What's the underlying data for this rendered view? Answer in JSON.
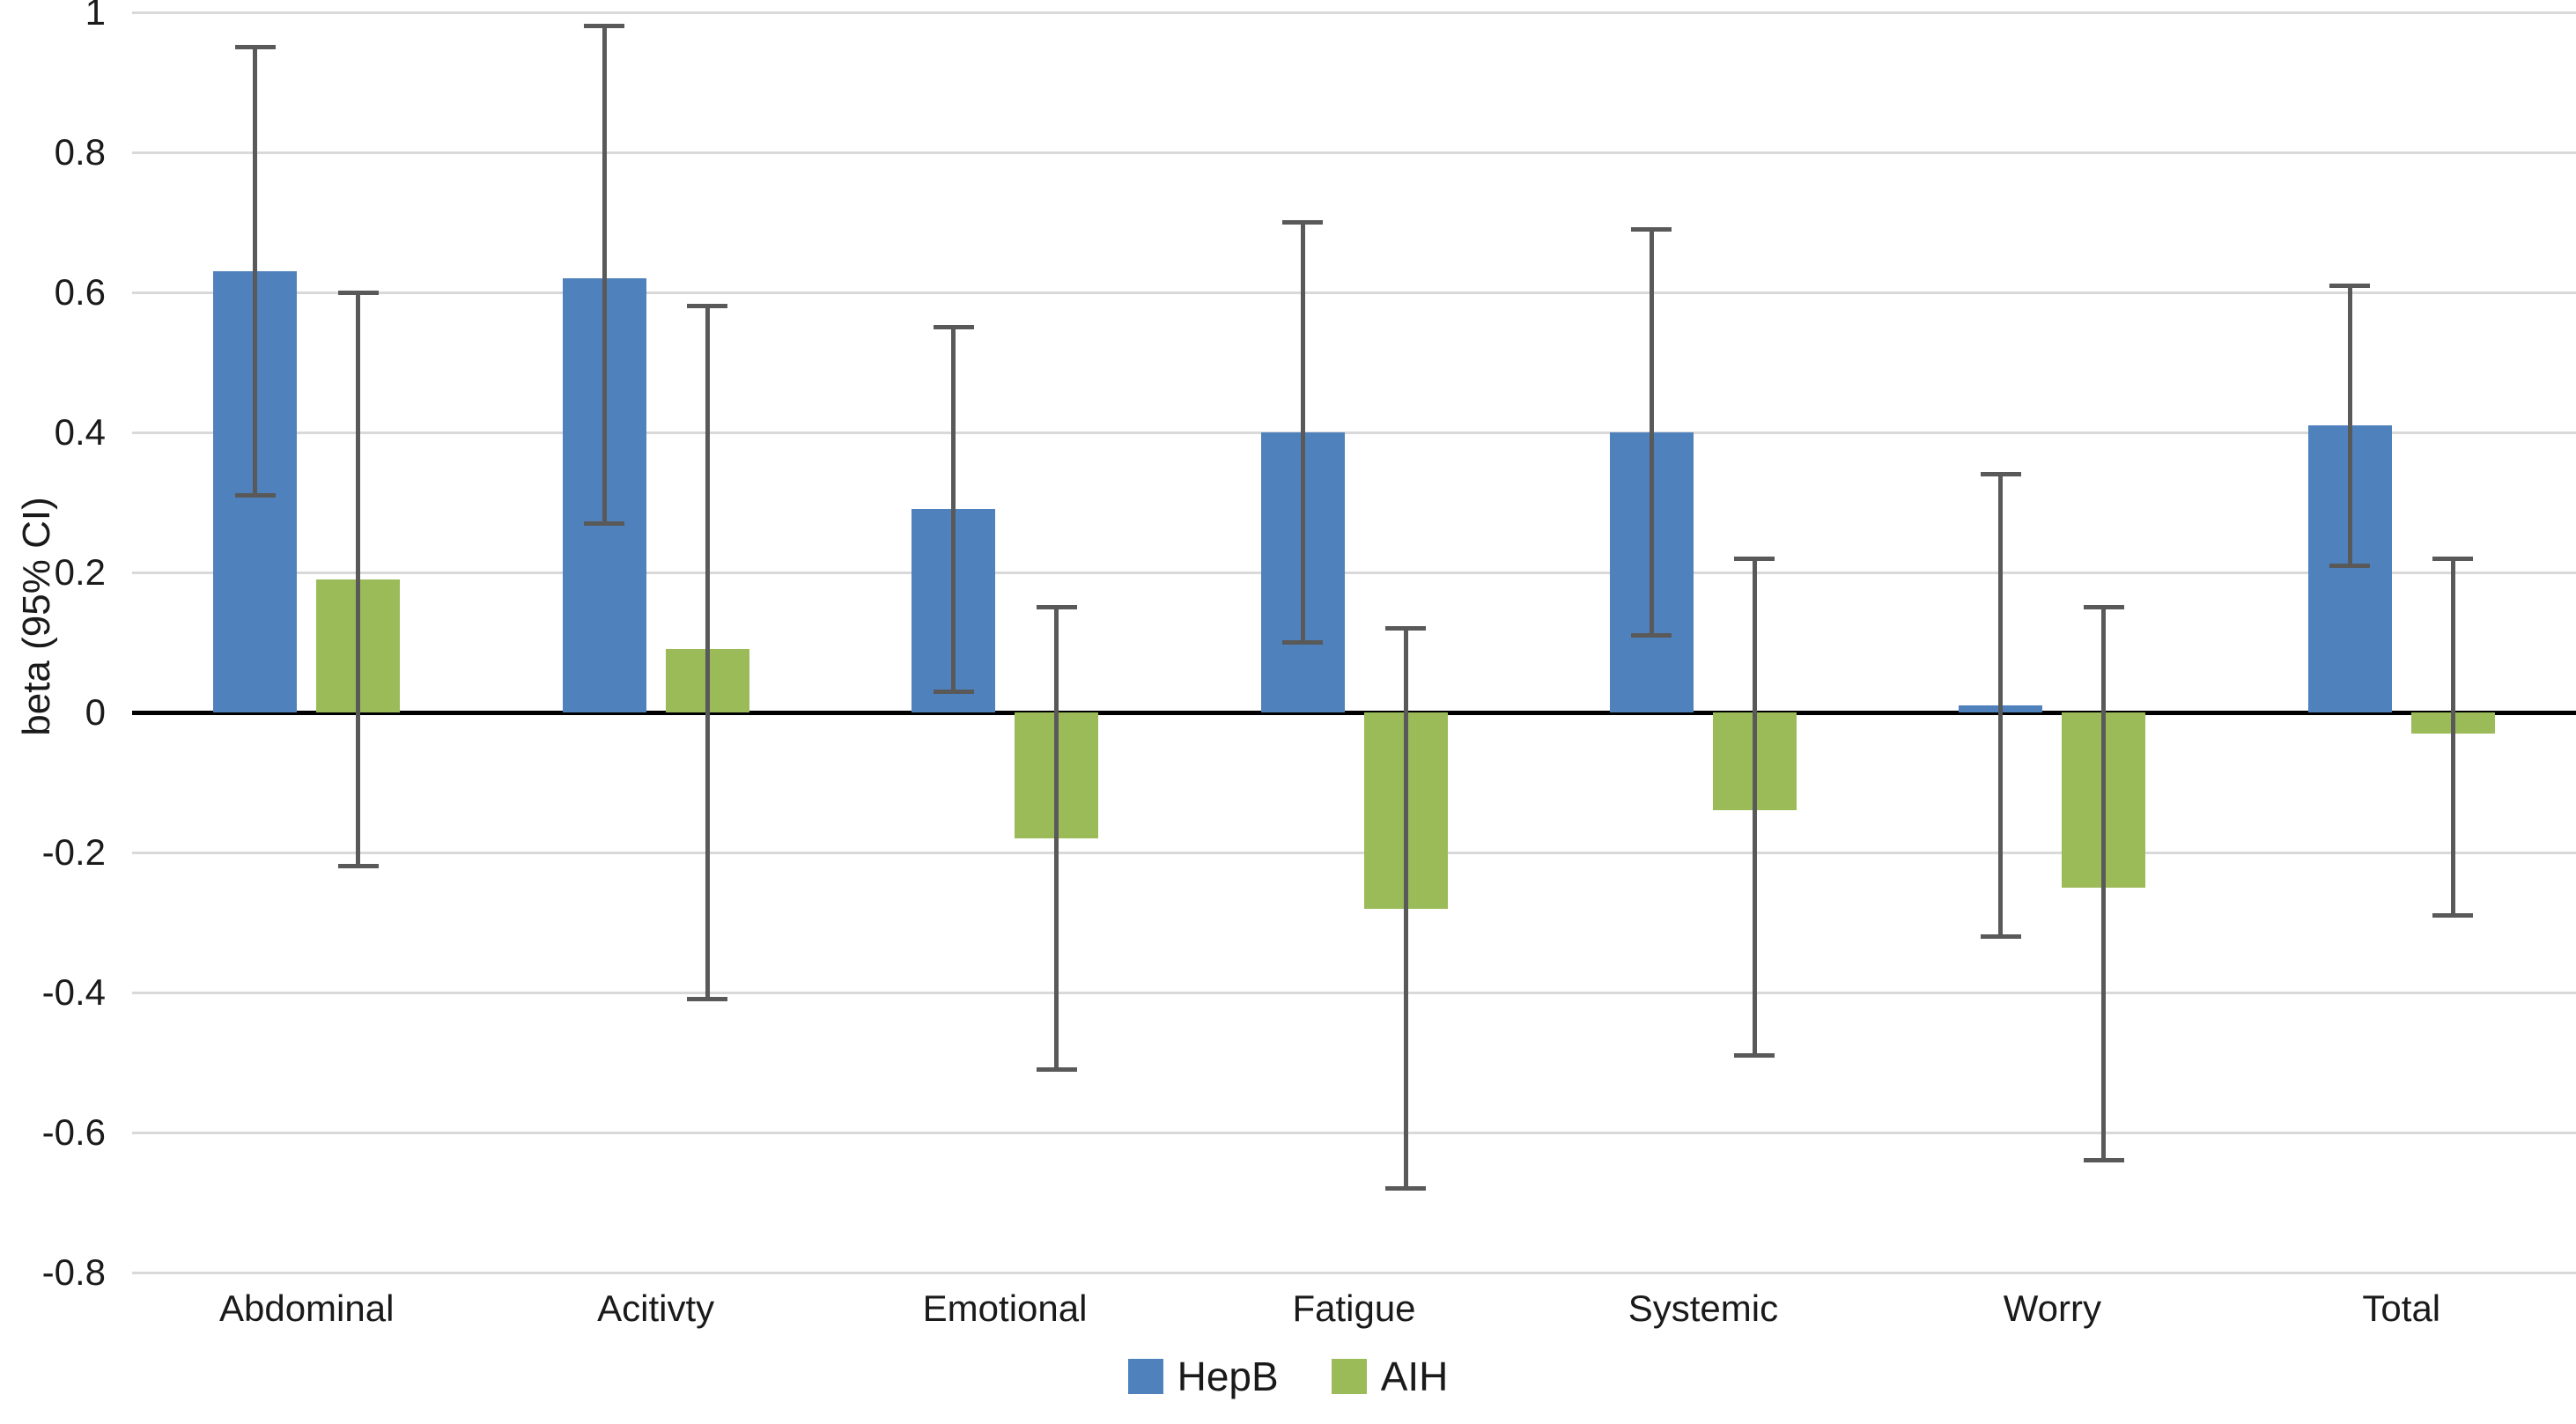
{
  "chart_data": {
    "type": "bar",
    "title": "",
    "xlabel": "",
    "ylabel": "beta (95% CI)",
    "categories": [
      "Abdominal",
      "Acitivty",
      "Emotional",
      "Fatigue",
      "Systemic",
      "Worry",
      "Total"
    ],
    "series": [
      {
        "name": "HepB",
        "color": "#4f81bd",
        "values": [
          0.63,
          0.62,
          0.29,
          0.4,
          0.4,
          0.01,
          0.41
        ],
        "ci_low": [
          0.31,
          0.27,
          0.03,
          0.1,
          0.11,
          -0.32,
          0.21
        ],
        "ci_high": [
          0.95,
          0.98,
          0.55,
          0.7,
          0.69,
          0.34,
          0.61
        ]
      },
      {
        "name": "AIH",
        "color": "#9bbb59",
        "values": [
          0.19,
          0.09,
          -0.18,
          -0.28,
          -0.14,
          -0.25,
          -0.03
        ],
        "ci_low": [
          -0.22,
          -0.41,
          -0.51,
          -0.68,
          -0.49,
          -0.64,
          -0.29
        ],
        "ci_high": [
          0.6,
          0.58,
          0.15,
          0.12,
          0.22,
          0.15,
          0.22
        ]
      }
    ],
    "y_ticks": [
      1,
      0.8,
      0.6,
      0.4,
      0.2,
      0,
      -0.2,
      -0.4,
      -0.6,
      -0.8
    ],
    "y_tick_labels": [
      "1",
      "0.8",
      "0.6",
      "0.4",
      "0.2",
      "0",
      "-0.2",
      "-0.4",
      "-0.6",
      "-0.8"
    ],
    "ylim": [
      -0.8,
      1
    ],
    "grid": true,
    "legend_position": "bottom",
    "error_bar_color": "#595959",
    "gridline_color": "#d9d9d9",
    "axis_color": "#000000"
  }
}
